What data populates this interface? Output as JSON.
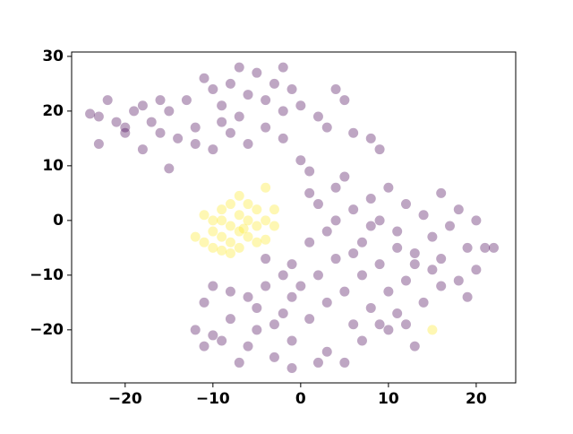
{
  "chart_data": {
    "type": "scatter",
    "xlim": [
      -26.1,
      24.5
    ],
    "ylim": [
      -29.7,
      30.8
    ],
    "xticks": [
      {
        "value": -20,
        "label": "−20"
      },
      {
        "value": -10,
        "label": "−10"
      },
      0,
      10,
      20
    ],
    "yticks": [
      {
        "value": -20,
        "label": "−20"
      },
      {
        "value": -10,
        "label": "−10"
      },
      0,
      10,
      20,
      30
    ],
    "series": [
      {
        "color": "#440154",
        "x": [
          -24,
          -23,
          -22,
          -21,
          -20,
          -19,
          -18,
          -17,
          -16,
          -15,
          -14,
          -13,
          -12,
          -11,
          -10,
          -9,
          -8,
          -7,
          -6,
          -5,
          -4,
          -3,
          -2,
          -1,
          0,
          2,
          3,
          4,
          5,
          -23,
          -18,
          -15,
          -12,
          -10,
          -8,
          -6,
          -4,
          -2,
          0,
          1,
          6,
          8,
          9,
          -7,
          -2,
          -20,
          -16,
          -9,
          1,
          2,
          3,
          4,
          5,
          6,
          7,
          8,
          9,
          10,
          11,
          12,
          13,
          14,
          15,
          16,
          17,
          18,
          19,
          20,
          21,
          22,
          20,
          18,
          19,
          16,
          15,
          14,
          12,
          11,
          10,
          9,
          8,
          7,
          6,
          5,
          4,
          3,
          2,
          1,
          0,
          -1,
          1,
          3,
          5,
          7,
          9,
          12,
          13,
          11,
          13,
          8,
          6,
          4,
          10,
          16,
          -12,
          -11,
          -10,
          -9,
          -8,
          -7,
          -6,
          -5,
          -4,
          -3,
          -2,
          -1,
          -11,
          -8,
          -6,
          -4,
          -3,
          -1,
          -2,
          -5,
          -1,
          2,
          -10
        ],
        "y": [
          19.5,
          19,
          22,
          18,
          17,
          20,
          21,
          18,
          16,
          20,
          15,
          22,
          17,
          26,
          24,
          21,
          25,
          19,
          23,
          27,
          22,
          25,
          20,
          24,
          21,
          19,
          17,
          24,
          22,
          14,
          13,
          9.5,
          14,
          13,
          16,
          14,
          17,
          15,
          11,
          9,
          16,
          15,
          13,
          28,
          28,
          16,
          22,
          18,
          5,
          3,
          -2,
          6,
          8,
          2,
          -4,
          4,
          0,
          6,
          -2,
          3,
          -6,
          1,
          -3,
          5,
          -1,
          2,
          -5,
          0,
          -5,
          -5,
          -9,
          -11,
          -14,
          -12,
          -9,
          -15,
          -11,
          -17,
          -13,
          -8,
          -16,
          -10,
          -19,
          -13,
          -7,
          -15,
          -10,
          -18,
          -12,
          -8,
          -4,
          -24,
          -26,
          -22,
          -19,
          -19,
          -23,
          -5,
          -8,
          -1,
          -6,
          0,
          -20,
          -7,
          -20,
          -15,
          -12,
          -22,
          -18,
          -26,
          -14,
          -20,
          -7,
          -25,
          -17,
          -22,
          -23,
          -13,
          -23,
          -12,
          -19,
          -14,
          -10,
          -16,
          -27,
          -26,
          -21
        ]
      },
      {
        "color": "#fde725",
        "x": [
          -12,
          -11,
          -11,
          -10,
          -10,
          -9,
          -9,
          -9,
          -8,
          -8,
          -8,
          -7,
          -7,
          -7,
          -7,
          -6,
          -6,
          -6,
          -5,
          -5,
          -5,
          -4,
          -4,
          -4,
          -3,
          -3,
          -8,
          -10,
          -6.5,
          -9,
          15
        ],
        "y": [
          -3,
          -4,
          1,
          -2,
          -5,
          0,
          -3,
          2,
          -1,
          -4,
          -6,
          -2,
          1,
          4.5,
          -5,
          0,
          -3,
          3,
          -1,
          2,
          -4,
          0,
          6,
          -3.5,
          2,
          -1,
          3,
          0,
          -1.5,
          -5.5,
          -20
        ]
      }
    ]
  }
}
